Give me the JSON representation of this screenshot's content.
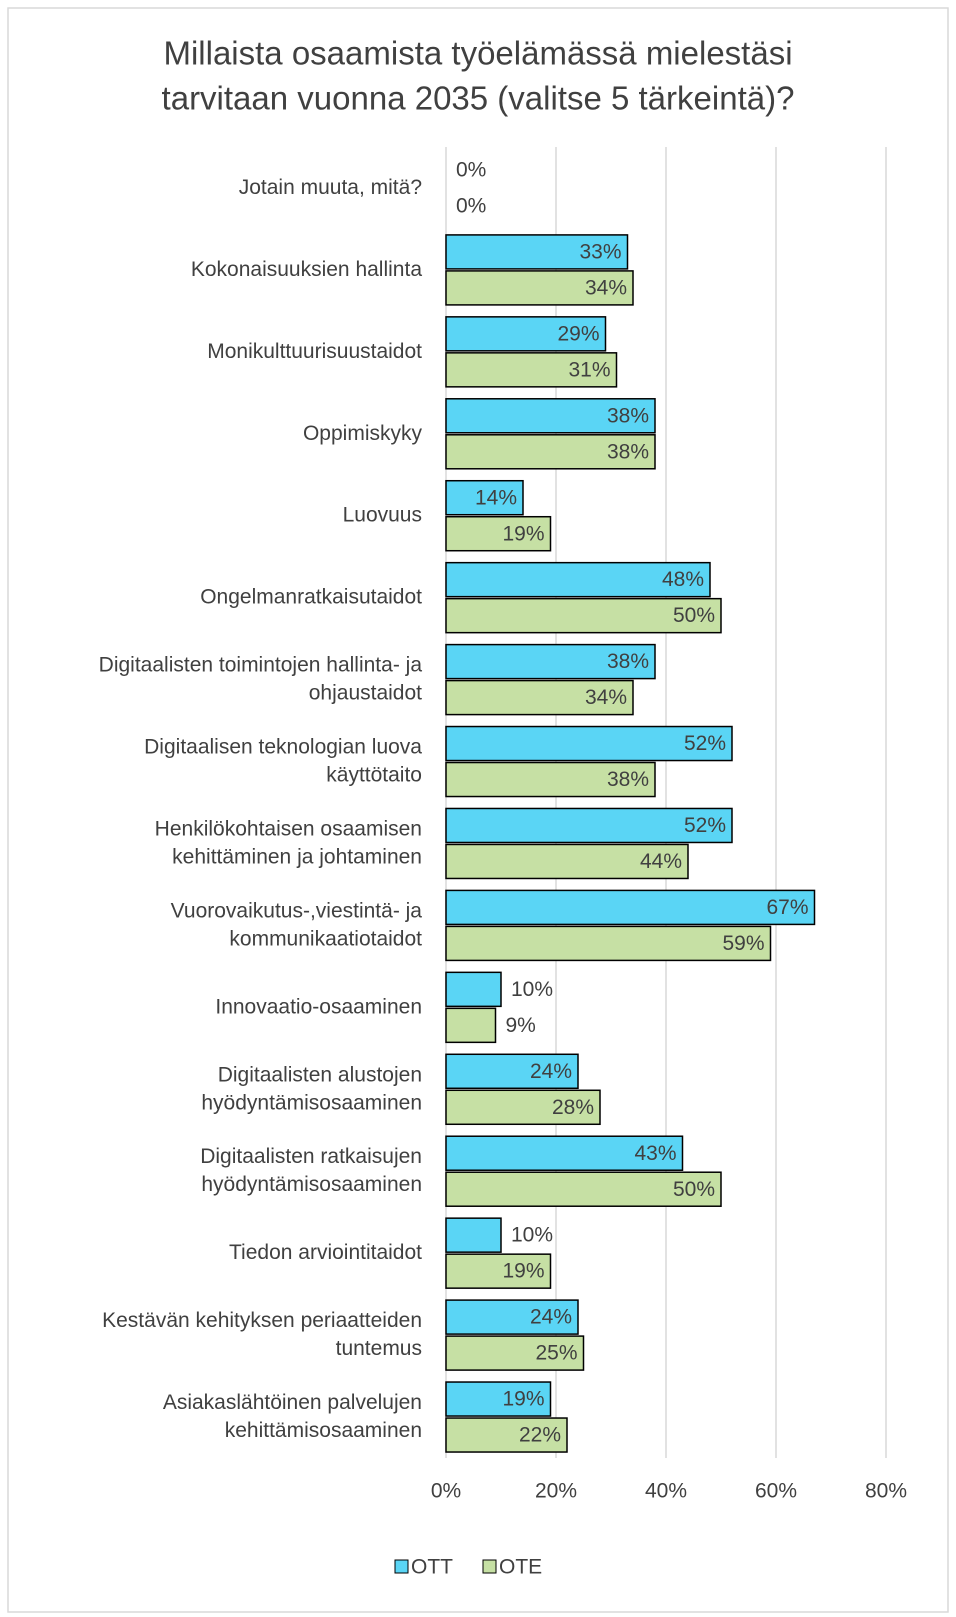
{
  "chart_data": {
    "type": "bar",
    "orientation": "horizontal",
    "title": "Millaista osaamista työelämässä mielestäsi\ntarvitaan vuonna 2035 (valitse 5 tärkeintä)?",
    "categories": [
      "Jotain muuta, mitä?",
      "Kokonaisuuksien hallinta",
      "Monikulttuurisuustaidot",
      "Oppimiskyky",
      "Luovuus",
      "Ongelmanratkaisutaidot",
      "Digitaalisten toimintojen hallinta- ja\nohjaustaidot",
      "Digitaalisen teknologian luova\nkäyttötaito",
      "Henkilökohtaisen osaamisen\nkehittäminen ja johtaminen",
      "Vuorovaikutus-,viestintä- ja\nkommunikaatiotaidot",
      "Innovaatio-osaaminen",
      "Digitaalisten alustojen\nhyödyntämisosaaminen",
      "Digitaalisten ratkaisujen\nhyödyntämisosaaminen",
      "Tiedon arviointitaidot",
      "Kestävän kehityksen periaatteiden\ntuntemus",
      "Asiakaslähtöinen palvelujen\nkehittämisosaaminen"
    ],
    "series": [
      {
        "name": "OTT",
        "color": "#5ad5f5",
        "values": [
          0,
          33,
          29,
          38,
          14,
          48,
          38,
          52,
          52,
          67,
          10,
          24,
          43,
          10,
          24,
          19
        ],
        "value_labels": [
          "0%",
          "33%",
          "29%",
          "38%",
          "14%",
          "48%",
          "38%",
          "52%",
          "52%",
          "67%",
          "10%",
          "24%",
          "43%",
          "10%",
          "24%",
          "19%"
        ]
      },
      {
        "name": "OTE",
        "color": "#c6e0a4",
        "values": [
          0,
          34,
          31,
          38,
          19,
          50,
          34,
          38,
          44,
          59,
          9,
          28,
          50,
          19,
          25,
          22
        ],
        "value_labels": [
          "0%",
          "34%",
          "31%",
          "38%",
          "19%",
          "50%",
          "34%",
          "38%",
          "44%",
          "59%",
          "9%",
          "28%",
          "50%",
          "19%",
          "25%",
          "22%"
        ]
      }
    ],
    "xlim": [
      0,
      80
    ],
    "xticks": [
      {
        "value": 0,
        "label": "0%"
      },
      {
        "value": 20,
        "label": "20%"
      },
      {
        "value": 40,
        "label": "40%"
      },
      {
        "value": 60,
        "label": "60%"
      },
      {
        "value": 80,
        "label": "80%"
      }
    ],
    "grid": true,
    "legend": "bottom"
  }
}
